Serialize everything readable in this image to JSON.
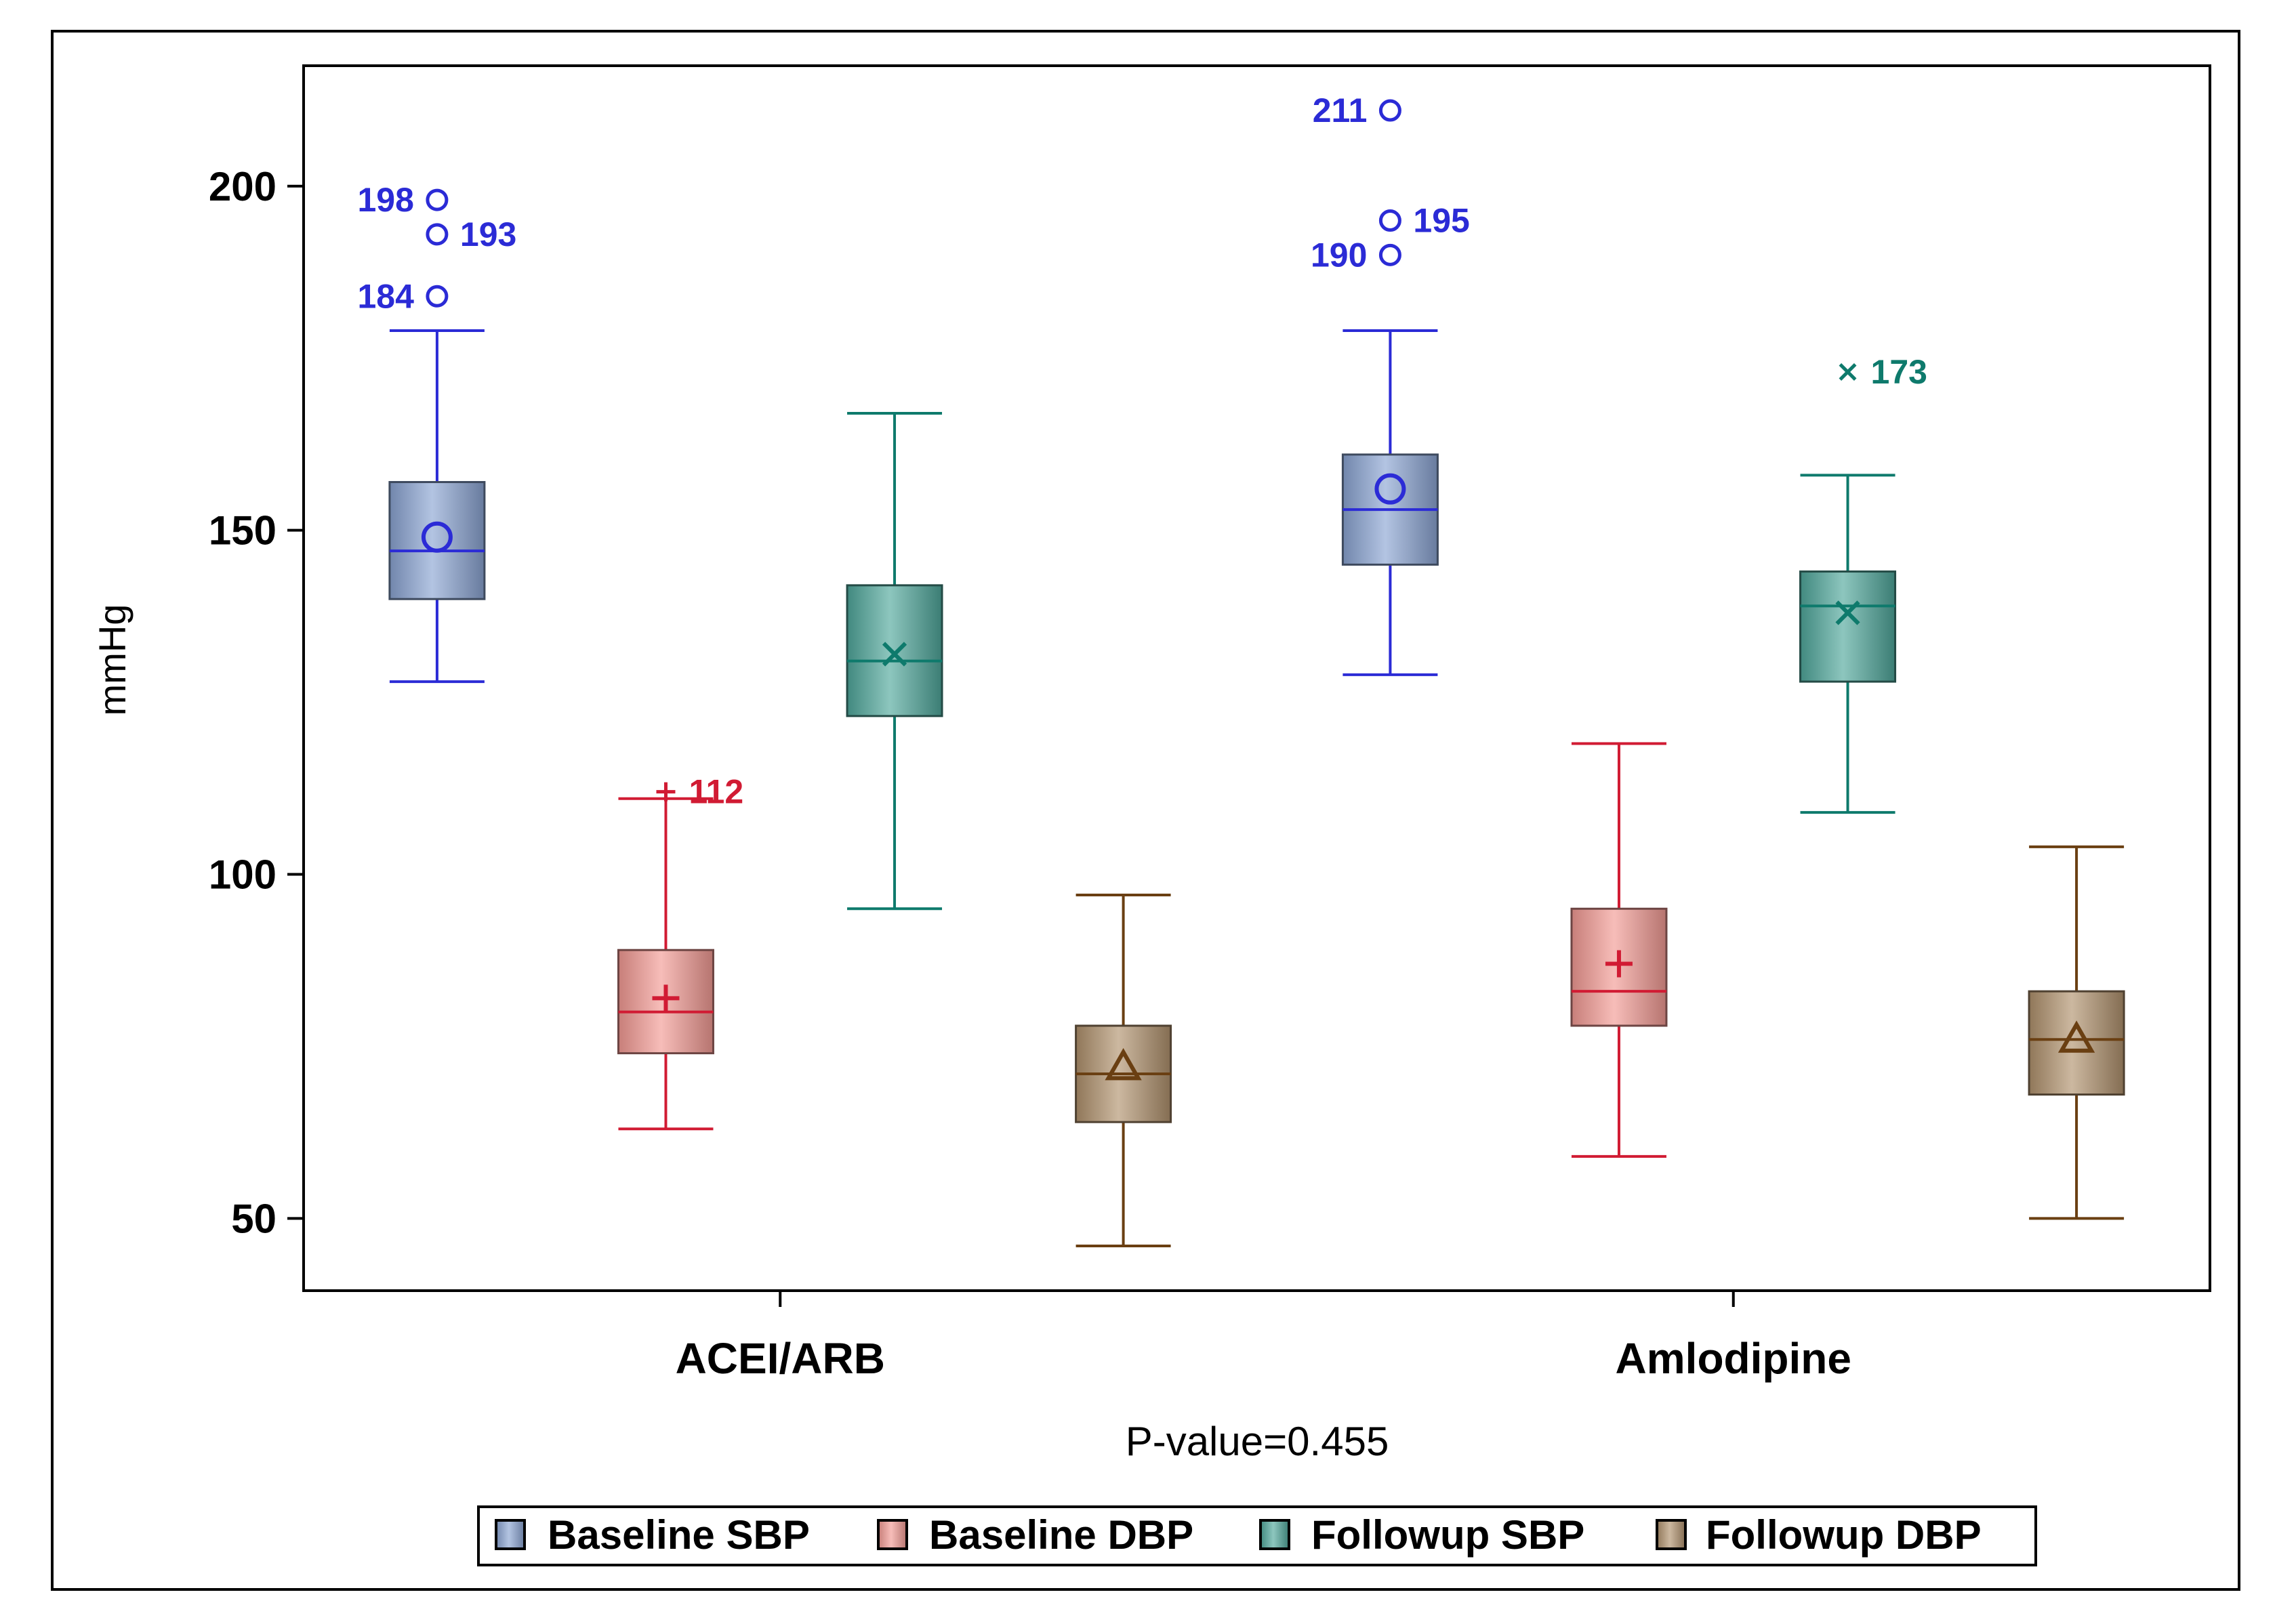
{
  "chart_data": {
    "type": "box",
    "title": "",
    "xlabel": "",
    "ylabel": "mmHg",
    "ylim": [
      39.5,
      217.5
    ],
    "yticks": [
      50,
      100,
      150,
      200
    ],
    "grid": false,
    "legend_position": "bottom",
    "footnote": "P-value=0.455",
    "categories": [
      "ACEI/ARB",
      "Amlodipine"
    ],
    "series": [
      {
        "name": "Baseline SBP",
        "color": "#8aa4d2",
        "line_color": "#2b2bd6",
        "marker": "circle",
        "boxes": [
          {
            "min": 128,
            "q1": 140,
            "median": 147,
            "q3": 157,
            "max": 179,
            "mean": 149,
            "outliers": [
              198,
              193,
              184
            ],
            "outlier_labels": [
              "198",
              "193",
              "184"
            ],
            "label_side": [
              "left",
              "right",
              "left"
            ]
          },
          {
            "min": 129,
            "q1": 145,
            "median": 153,
            "q3": 161,
            "max": 179,
            "mean": 156,
            "outliers": [
              211,
              195,
              190
            ],
            "outlier_labels": [
              "211",
              "195",
              "190"
            ],
            "label_side": [
              "left",
              "right",
              "left"
            ]
          }
        ]
      },
      {
        "name": "Baseline DBP",
        "color": "#f39a94",
        "line_color": "#d11b33",
        "marker": "plus",
        "boxes": [
          {
            "min": 63,
            "q1": 74,
            "median": 80,
            "q3": 89,
            "max": 111,
            "mean": 82,
            "outliers": [
              112
            ],
            "outlier_labels": [
              "112"
            ],
            "label_side": [
              "right"
            ]
          },
          {
            "min": 59,
            "q1": 78,
            "median": 83,
            "q3": 95,
            "max": 119,
            "mean": 87,
            "outliers": [],
            "outlier_labels": [],
            "label_side": []
          }
        ]
      },
      {
        "name": "Followup SBP",
        "color": "#4fa79b",
        "line_color": "#0e7a6c",
        "marker": "x",
        "boxes": [
          {
            "min": 95,
            "q1": 123,
            "median": 131,
            "q3": 142,
            "max": 167,
            "mean": 132,
            "outliers": [],
            "outlier_labels": [],
            "label_side": []
          },
          {
            "min": 109,
            "q1": 128,
            "median": 139,
            "q3": 144,
            "max": 158,
            "mean": 138,
            "outliers": [
              173
            ],
            "outlier_labels": [
              "173"
            ],
            "label_side": [
              "right"
            ]
          }
        ]
      },
      {
        "name": "Followup DBP",
        "color": "#b0916d",
        "line_color": "#6a3f12",
        "marker": "triangle",
        "boxes": [
          {
            "min": 46,
            "q1": 64,
            "median": 71,
            "q3": 78,
            "max": 97,
            "mean": 72,
            "outliers": [],
            "outlier_labels": [],
            "label_side": []
          },
          {
            "min": 50,
            "q1": 68,
            "median": 76,
            "q3": 83,
            "max": 104,
            "mean": 76,
            "outliers": [],
            "outlier_labels": [],
            "label_side": []
          }
        ]
      }
    ]
  }
}
